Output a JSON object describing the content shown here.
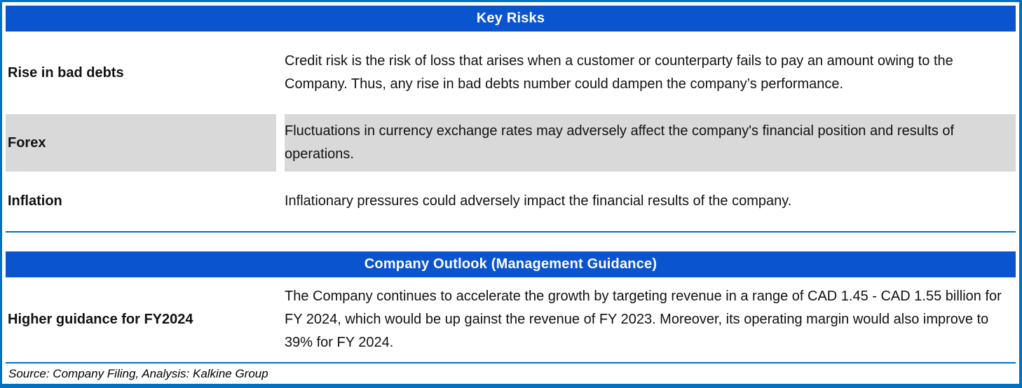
{
  "colors": {
    "header_bg": "#0B54CF",
    "border_blue": "#0070C0",
    "row_alt_bg": "#D9D9D9",
    "header_text": "#FFFFFF"
  },
  "sections": [
    {
      "title": "Key Risks",
      "rows": [
        {
          "label": "Rise in bad debts",
          "description": "Credit risk is the risk of loss that arises when a customer or counterparty fails to pay an amount owing to the Company. Thus, any rise in bad debts number could dampen the company’s performance."
        },
        {
          "label": "Forex",
          "description": "Fluctuations in currency exchange rates may adversely affect the company's financial position and results of operations."
        },
        {
          "label": "Inflation",
          "description": "Inflationary pressures could adversely impact the financial results of the company."
        }
      ]
    },
    {
      "title": "Company Outlook (Management Guidance)",
      "rows": [
        {
          "label": "Higher guidance for FY2024",
          "description": "The Company continues to accelerate the growth by targeting revenue in a range of CAD 1.45 - CAD 1.55 billion for FY 2024, which would be up gainst the revenue of FY 2023. Moreover, its operating margin would also improve to 39% for FY 2024."
        }
      ]
    }
  ],
  "footer": {
    "source_note": "Source: Company Filing, Analysis: Kalkine Group"
  }
}
